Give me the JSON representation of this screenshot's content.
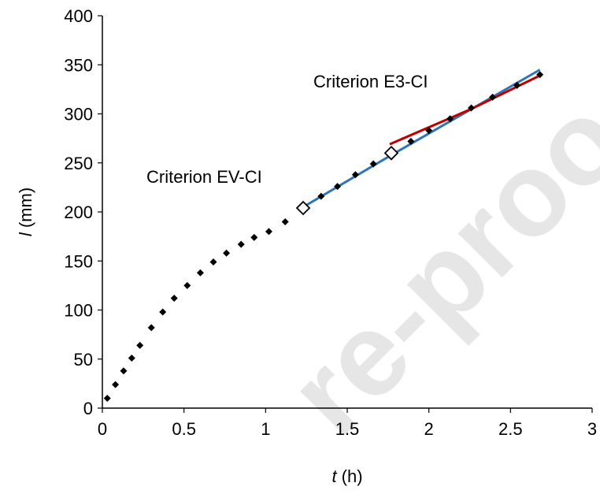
{
  "chart_data": {
    "type": "line",
    "xlabel": {
      "var": "t",
      "unit": " (h)"
    },
    "ylabel": {
      "var": "l",
      "unit": " (mm)"
    },
    "xlim": [
      0,
      3
    ],
    "ylim": [
      0,
      400
    ],
    "x_ticks": [
      "0",
      "0.5",
      "1",
      "1.5",
      "2",
      "2.5",
      "3"
    ],
    "y_ticks": [
      "0",
      "50",
      "100",
      "150",
      "200",
      "250",
      "300",
      "350",
      "400"
    ],
    "grid": false,
    "annotations": [
      {
        "text": "Criterion EV-CI"
      },
      {
        "text": "Criterion E3-CI"
      }
    ],
    "series": [
      {
        "style": "dotted-markers",
        "color": "#000000",
        "points": [
          [
            0.03,
            10
          ],
          [
            0.08,
            24
          ],
          [
            0.13,
            38
          ],
          [
            0.18,
            51
          ],
          [
            0.23,
            64
          ],
          [
            0.3,
            82
          ],
          [
            0.37,
            98
          ],
          [
            0.44,
            112
          ],
          [
            0.52,
            125
          ],
          [
            0.6,
            138
          ],
          [
            0.68,
            149
          ],
          [
            0.76,
            158
          ],
          [
            0.85,
            167
          ],
          [
            0.93,
            174
          ],
          [
            1.02,
            180
          ],
          [
            1.12,
            190
          ],
          [
            1.23,
            204
          ],
          [
            1.34,
            216
          ],
          [
            1.44,
            226
          ],
          [
            1.55,
            238
          ],
          [
            1.66,
            249
          ],
          [
            1.77,
            260
          ],
          [
            1.89,
            272
          ],
          [
            2.0,
            283
          ],
          [
            2.13,
            295
          ],
          [
            2.26,
            306
          ],
          [
            2.39,
            317
          ],
          [
            2.54,
            329
          ],
          [
            2.68,
            340
          ]
        ]
      },
      {
        "style": "line",
        "color": "#2e75b6",
        "points": [
          [
            1.23,
            205
          ],
          [
            1.77,
            258
          ],
          [
            2.68,
            345
          ]
        ]
      },
      {
        "style": "line",
        "color": "#c00000",
        "points": [
          [
            1.76,
            269
          ],
          [
            2.26,
            305
          ],
          [
            2.68,
            339
          ]
        ]
      },
      {
        "style": "open-diamond",
        "color": "#000000",
        "points": [
          [
            1.23,
            204
          ],
          [
            1.77,
            260
          ]
        ]
      }
    ]
  },
  "watermark": {
    "text": "re-proo"
  }
}
